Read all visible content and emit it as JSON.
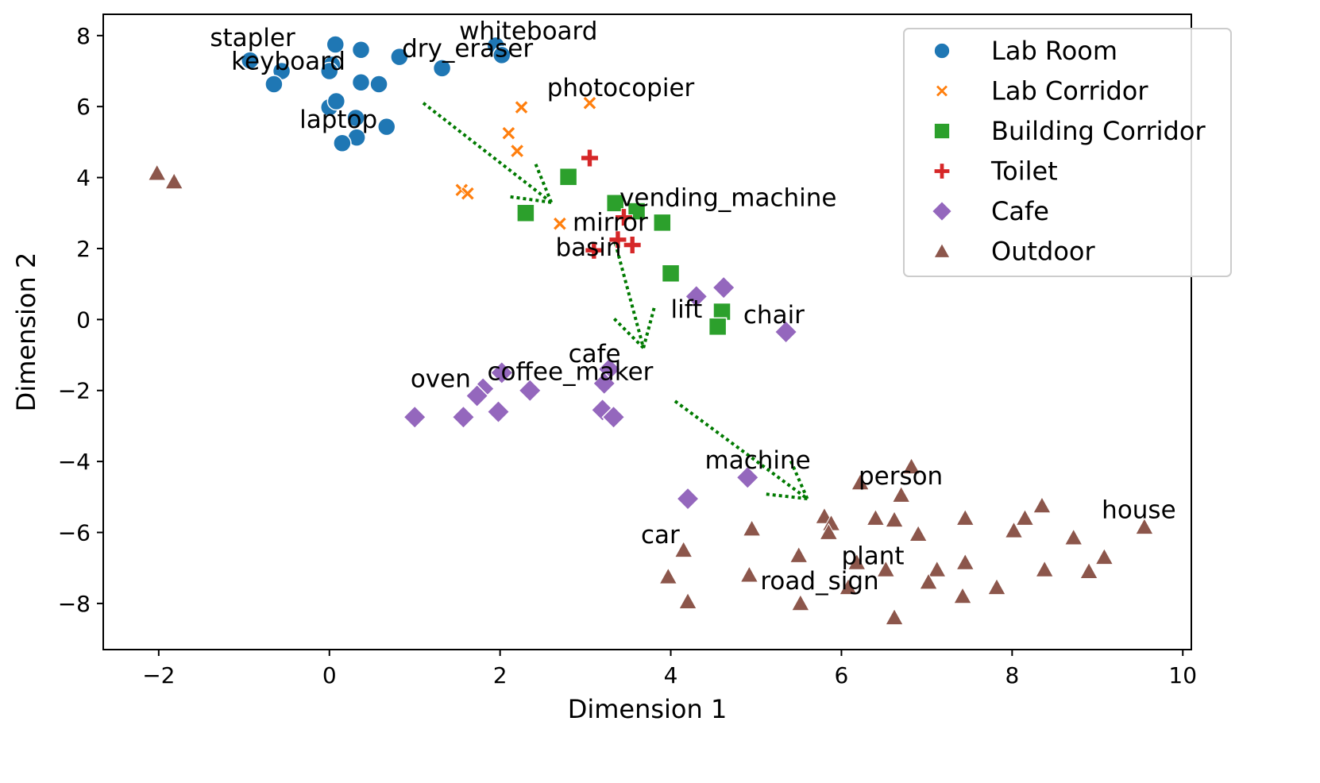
{
  "chart_data": {
    "type": "scatter",
    "xlabel": "Dimension 1",
    "ylabel": "Dimension 2",
    "xlim": [
      -2.65,
      10.1
    ],
    "ylim": [
      -9.3,
      8.6
    ],
    "xticks": [
      -2,
      0,
      2,
      4,
      6,
      8,
      10
    ],
    "yticks": [
      -8,
      -6,
      -4,
      -2,
      0,
      2,
      4,
      6,
      8
    ],
    "grid": false,
    "legend_position": "top-right",
    "series": [
      {
        "name": "Lab Room",
        "marker": "circle",
        "color": "#1f77b4",
        "points": [
          [
            0.07,
            7.75
          ],
          [
            0.37,
            7.6
          ],
          [
            -0.93,
            7.3
          ],
          [
            -0.56,
            7.0
          ],
          [
            0.03,
            7.18
          ],
          [
            0.0,
            7.0
          ],
          [
            -0.65,
            6.63
          ],
          [
            0.37,
            6.68
          ],
          [
            0.58,
            6.63
          ],
          [
            0.82,
            7.4
          ],
          [
            1.32,
            7.08
          ],
          [
            1.95,
            7.72
          ],
          [
            2.02,
            7.45
          ],
          [
            0.0,
            5.98
          ],
          [
            0.08,
            6.15
          ],
          [
            0.31,
            5.68
          ],
          [
            0.67,
            5.43
          ],
          [
            0.32,
            5.13
          ],
          [
            0.15,
            4.97
          ]
        ]
      },
      {
        "name": "Lab Corridor",
        "marker": "x",
        "color": "#ff7f0e",
        "points": [
          [
            2.25,
            5.98
          ],
          [
            3.05,
            6.1
          ],
          [
            2.1,
            5.25
          ],
          [
            2.2,
            4.75
          ],
          [
            1.55,
            3.65
          ],
          [
            1.62,
            3.55
          ],
          [
            2.7,
            2.7
          ]
        ]
      },
      {
        "name": "Building Corridor",
        "marker": "square",
        "color": "#2ca02c",
        "points": [
          [
            2.8,
            4.02
          ],
          [
            2.3,
            3.0
          ],
          [
            3.35,
            3.28
          ],
          [
            3.6,
            3.05
          ],
          [
            3.9,
            2.73
          ],
          [
            4.0,
            1.3
          ],
          [
            4.6,
            0.22
          ],
          [
            4.55,
            -0.2
          ]
        ]
      },
      {
        "name": "Toilet",
        "marker": "plus",
        "color": "#d62728",
        "points": [
          [
            3.05,
            4.55
          ],
          [
            3.45,
            2.88
          ],
          [
            3.38,
            2.25
          ],
          [
            3.55,
            2.1
          ],
          [
            3.1,
            1.95
          ]
        ]
      },
      {
        "name": "Cafe",
        "marker": "diamond",
        "color": "#9467bd",
        "points": [
          [
            4.3,
            0.65
          ],
          [
            4.62,
            0.9
          ],
          [
            5.35,
            -0.35
          ],
          [
            3.28,
            -1.4
          ],
          [
            3.22,
            -1.8
          ],
          [
            2.02,
            -1.5
          ],
          [
            1.8,
            -1.95
          ],
          [
            1.73,
            -2.15
          ],
          [
            2.35,
            -2.0
          ],
          [
            1.0,
            -2.75
          ],
          [
            1.57,
            -2.75
          ],
          [
            1.98,
            -2.6
          ],
          [
            3.2,
            -2.55
          ],
          [
            3.33,
            -2.75
          ],
          [
            4.9,
            -4.45
          ],
          [
            4.2,
            -5.05
          ]
        ]
      },
      {
        "name": "Outdoor",
        "marker": "triangle",
        "color": "#8c564b",
        "points": [
          [
            -2.02,
            4.12
          ],
          [
            -1.82,
            3.88
          ],
          [
            6.82,
            -4.15
          ],
          [
            6.22,
            -4.6
          ],
          [
            6.7,
            -4.95
          ],
          [
            5.8,
            -5.55
          ],
          [
            5.88,
            -5.75
          ],
          [
            6.4,
            -5.6
          ],
          [
            6.62,
            -5.65
          ],
          [
            5.85,
            -6.0
          ],
          [
            4.95,
            -5.9
          ],
          [
            6.9,
            -6.05
          ],
          [
            7.45,
            -5.6
          ],
          [
            8.15,
            -5.6
          ],
          [
            8.35,
            -5.25
          ],
          [
            8.02,
            -5.95
          ],
          [
            8.72,
            -6.15
          ],
          [
            9.55,
            -5.85
          ],
          [
            4.15,
            -6.5
          ],
          [
            5.5,
            -6.65
          ],
          [
            6.18,
            -6.85
          ],
          [
            6.52,
            -7.05
          ],
          [
            7.12,
            -7.05
          ],
          [
            7.45,
            -6.85
          ],
          [
            8.38,
            -7.05
          ],
          [
            8.9,
            -7.1
          ],
          [
            9.08,
            -6.7
          ],
          [
            3.97,
            -7.25
          ],
          [
            4.92,
            -7.2
          ],
          [
            7.02,
            -7.4
          ],
          [
            7.82,
            -7.55
          ],
          [
            6.08,
            -7.55
          ],
          [
            4.2,
            -7.95
          ],
          [
            5.52,
            -8.0
          ],
          [
            7.42,
            -7.8
          ],
          [
            6.62,
            -8.4
          ]
        ]
      }
    ],
    "annotations": [
      {
        "text": "stapler",
        "x": -1.4,
        "y": 7.7
      },
      {
        "text": "keyboard",
        "x": -1.15,
        "y": 7.05
      },
      {
        "text": "dry_eraser",
        "x": 0.85,
        "y": 7.4
      },
      {
        "text": "whiteboard",
        "x": 1.52,
        "y": 7.9
      },
      {
        "text": "laptop",
        "x": -0.35,
        "y": 5.4
      },
      {
        "text": "photocopier",
        "x": 2.55,
        "y": 6.3
      },
      {
        "text": "vending_machine",
        "x": 3.4,
        "y": 3.2
      },
      {
        "text": "mirror",
        "x": 2.85,
        "y": 2.5
      },
      {
        "text": "basin",
        "x": 2.65,
        "y": 1.8
      },
      {
        "text": "lift",
        "x": 4.0,
        "y": 0.05
      },
      {
        "text": "chair",
        "x": 4.85,
        "y": -0.1
      },
      {
        "text": "cafe",
        "x": 2.8,
        "y": -1.2
      },
      {
        "text": "oven",
        "x": 0.95,
        "y": -1.9
      },
      {
        "text": "coffee_maker",
        "x": 1.85,
        "y": -1.7
      },
      {
        "text": "machine",
        "x": 4.4,
        "y": -4.2
      },
      {
        "text": "person",
        "x": 6.2,
        "y": -4.65
      },
      {
        "text": "house",
        "x": 9.05,
        "y": -5.6
      },
      {
        "text": "car",
        "x": 3.65,
        "y": -6.3
      },
      {
        "text": "plant",
        "x": 6.0,
        "y": -6.9
      },
      {
        "text": "road_sign",
        "x": 5.05,
        "y": -7.6
      }
    ],
    "trajectory_arrows": [
      {
        "from": [
          1.1,
          6.1
        ],
        "to": [
          2.6,
          3.3
        ]
      },
      {
        "from": [
          3.35,
          2.15
        ],
        "to": [
          3.68,
          -0.8
        ]
      },
      {
        "from": [
          4.05,
          -2.3
        ],
        "to": [
          5.6,
          -5.05
        ]
      }
    ]
  }
}
